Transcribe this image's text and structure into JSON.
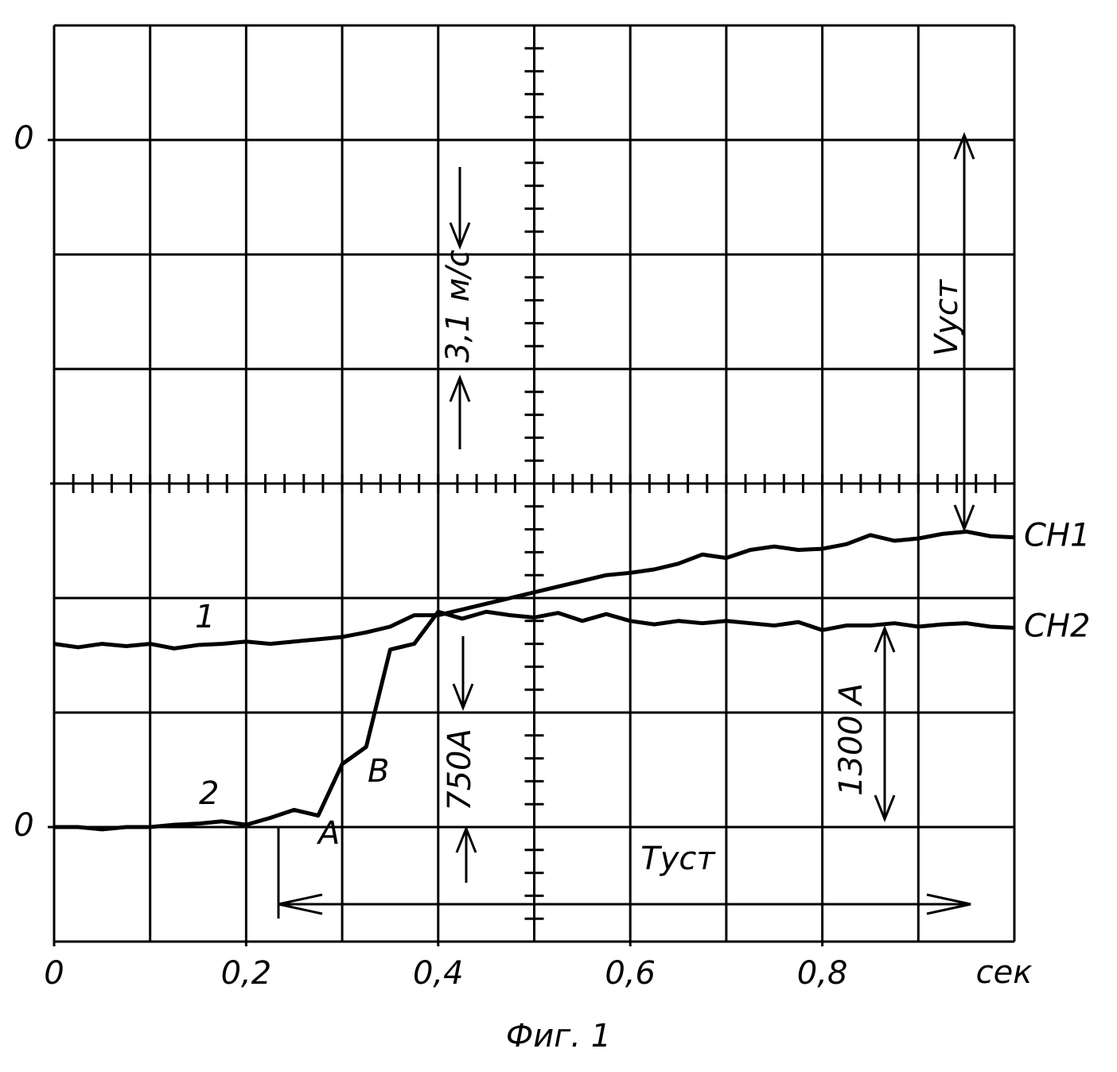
{
  "chart_data": {
    "type": "line",
    "title": "Фиг. 1",
    "x_label": "сек",
    "x": [
      0,
      0.025,
      0.05,
      0.075,
      0.1,
      0.125,
      0.15,
      0.175,
      0.2,
      0.225,
      0.25,
      0.275,
      0.3,
      0.325,
      0.35,
      0.375,
      0.4,
      0.425,
      0.45,
      0.475,
      0.5,
      0.525,
      0.55,
      0.575,
      0.6,
      0.625,
      0.65,
      0.675,
      0.7,
      0.725,
      0.75,
      0.775,
      0.8,
      0.825,
      0.85,
      0.875,
      0.9,
      0.925,
      0.95,
      0.975,
      1.0
    ],
    "series": [
      {
        "name": "CH1",
        "color": "#000000",
        "values": [
          1.6,
          1.57,
          1.6,
          1.58,
          1.6,
          1.56,
          1.59,
          1.6,
          1.62,
          1.6,
          1.62,
          1.64,
          1.66,
          1.7,
          1.75,
          1.85,
          1.85,
          1.9,
          1.95,
          2.0,
          2.05,
          2.1,
          2.15,
          2.2,
          2.22,
          2.25,
          2.3,
          2.38,
          2.35,
          2.42,
          2.45,
          2.42,
          2.43,
          2.47,
          2.55,
          2.5,
          2.52,
          2.56,
          2.58,
          2.54,
          2.53
        ]
      },
      {
        "name": "CH2",
        "color": "#000000",
        "values": [
          0,
          0,
          -0.02,
          0,
          0,
          0.02,
          0.03,
          0.05,
          0.02,
          0.08,
          0.15,
          0.1,
          0.55,
          0.7,
          1.55,
          1.6,
          1.88,
          1.82,
          1.88,
          1.85,
          1.83,
          1.87,
          1.8,
          1.86,
          1.8,
          1.77,
          1.8,
          1.78,
          1.8,
          1.78,
          1.76,
          1.79,
          1.72,
          1.76,
          1.76,
          1.78,
          1.75,
          1.77,
          1.78,
          1.75,
          1.74
        ]
      }
    ],
    "xlim": [
      0,
      1.0
    ],
    "xticks": [
      0,
      {
        "value": 0.2,
        "label": "0,2"
      },
      {
        "value": 0.4,
        "label": "0,4"
      },
      {
        "value": 0.6,
        "label": "0,6"
      },
      {
        "value": 0.8,
        "label": "0,8"
      }
    ],
    "xgrid": [
      0,
      0.1,
      0.2,
      0.3,
      0.4,
      0.5,
      0.6,
      0.7,
      0.8,
      0.9,
      1.0
    ],
    "ylim": [
      -1,
      7
    ],
    "yticks": [
      0,
      {
        "value": 6,
        "label": "0"
      }
    ],
    "ygrid": [
      -1,
      0,
      1,
      2,
      3,
      4,
      5,
      6,
      7
    ],
    "grid": true,
    "annotations": [
      "1",
      "2",
      "A",
      "B",
      "3,1 м/с",
      "750A",
      "1300 A",
      "Vуст",
      "Tуст"
    ]
  }
}
